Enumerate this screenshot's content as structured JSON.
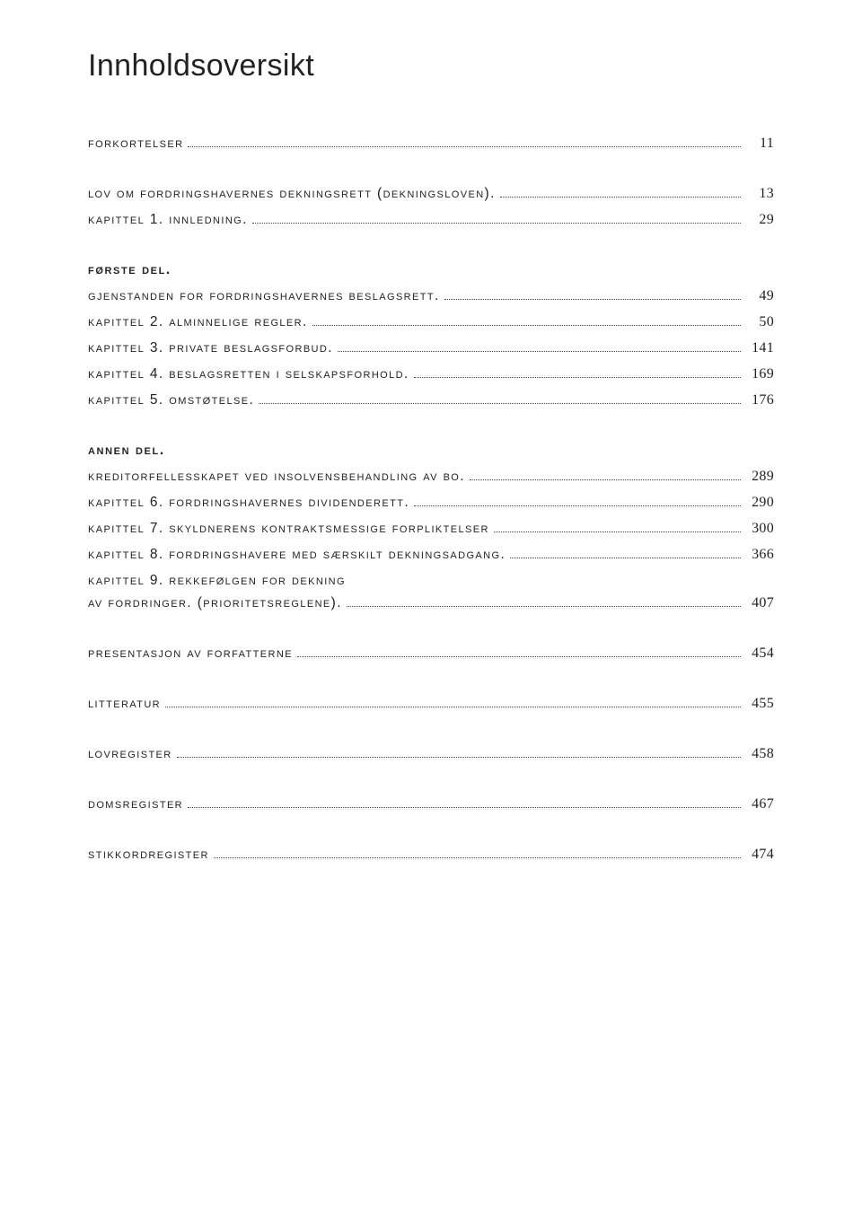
{
  "title": "Innholdsoversikt",
  "colors": {
    "text": "#222222",
    "background": "#ffffff",
    "dots": "#444444"
  },
  "entries": [
    {
      "label": "forkortelser",
      "page": "11",
      "gapAfter": true
    },
    {
      "label": "lov om fordringshavernes dekningsrett (dekningsloven).",
      "page": "13",
      "gapAfter": false
    },
    {
      "label": "kapittel 1. innledning.",
      "page": "29",
      "gapAfter": true
    },
    {
      "head": "første del."
    },
    {
      "label": "gjenstanden for fordringshavernes beslagsrett.",
      "page": "49",
      "gapAfter": false
    },
    {
      "label": "kapittel 2. alminnelige regler.",
      "page": "50",
      "gapAfter": false
    },
    {
      "label": "kapittel 3. private beslagsforbud.",
      "page": "141",
      "gapAfter": false
    },
    {
      "label": "kapittel 4. beslagsretten i selskapsforhold.",
      "page": "169",
      "gapAfter": false
    },
    {
      "label": "kapittel 5. omstøtelse.",
      "page": "176",
      "gapAfter": true
    },
    {
      "head": "annen del."
    },
    {
      "label": "kreditorfellesskapet ved insolvensbehandling av bo.",
      "page": "289",
      "gapAfter": false
    },
    {
      "label": "kapittel 6. fordringshavernes dividenderett.",
      "page": "290",
      "gapAfter": false
    },
    {
      "label": "kapittel 7. skyldnerens kontraktsmessige forpliktelser",
      "page": "300",
      "gapAfter": false
    },
    {
      "label": "kapittel 8. fordringshavere med særskilt dekningsadgang.",
      "page": "366",
      "gapAfter": false
    },
    {
      "label": "kapittel 9. rekkefølgen for dekning",
      "wrap": true
    },
    {
      "label": "av fordringer. (prioritetsreglene).",
      "page": "407",
      "gapAfter": true,
      "continuation": true
    },
    {
      "label": "presentasjon av forfatterne",
      "page": "454",
      "gapAfter": true
    },
    {
      "label": "litteratur",
      "page": "455",
      "gapAfter": true
    },
    {
      "label": "lovregister",
      "page": "458",
      "gapAfter": true
    },
    {
      "label": "domsregister",
      "page": "467",
      "gapAfter": true
    },
    {
      "label": "stikkordregister",
      "page": "474",
      "gapAfter": false
    }
  ]
}
